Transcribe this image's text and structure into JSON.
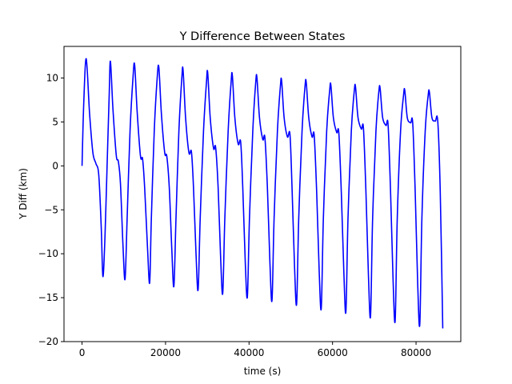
{
  "chart_data": {
    "type": "line",
    "title": "Y Difference Between States",
    "xlabel": "time (s)",
    "ylabel": "Y Diff (km)",
    "xlim": [
      -4320,
      90720
    ],
    "ylim": [
      -20,
      13.6
    ],
    "xticks": [
      0,
      20000,
      40000,
      60000,
      80000
    ],
    "xtick_labels": [
      "0",
      "20000",
      "40000",
      "60000",
      "80000"
    ],
    "yticks": [
      -20,
      -15,
      -10,
      -5,
      0,
      5,
      10
    ],
    "ytick_labels": [
      "−20",
      "−15",
      "−10",
      "−5",
      "0",
      "5",
      "10"
    ],
    "grid": false,
    "legend": "none",
    "series": [
      {
        "color": "#0000ff",
        "x": [
          0,
          400,
          1000,
          1800,
          2600,
          3300,
          4000,
          4600,
          5000,
          5500,
          6000,
          6500,
          6800,
          7400,
          8200,
          8700,
          9200,
          9800,
          10300,
          10800,
          11500,
          12200,
          12600,
          13200,
          14000,
          14500,
          15000,
          15700,
          16200,
          16600,
          17300,
          18000,
          18400,
          19000,
          19800,
          20300,
          20900,
          21500,
          22000,
          22500,
          23200,
          23900,
          24200,
          24800,
          25600,
          26200,
          26700,
          27300,
          27800,
          28300,
          29100,
          29800,
          30100,
          30700,
          31500,
          32000,
          32600,
          33200,
          33700,
          34200,
          35000,
          35700,
          36000,
          36600,
          37400,
          38000,
          38500,
          39100,
          39600,
          40100,
          40900,
          41600,
          41900,
          42500,
          43300,
          43800,
          44400,
          45000,
          45500,
          46000,
          46800,
          47500,
          47800,
          48400,
          49200,
          49800,
          50300,
          50900,
          51400,
          51900,
          52700,
          53400,
          53700,
          54300,
          55100,
          55600,
          56200,
          56800,
          57300,
          57800,
          58600,
          59300,
          59600,
          60200,
          61000,
          61500,
          62100,
          62700,
          63200,
          63700,
          64500,
          65200,
          65500,
          66100,
          66900,
          67400,
          68000,
          68600,
          69100,
          69600,
          70400,
          71100,
          71400,
          72000,
          72800,
          73300,
          73900,
          74500,
          75000,
          75500,
          76300,
          77000,
          77300,
          77900,
          78700,
          79200,
          79800,
          80400,
          80900,
          81400,
          82200,
          82900,
          83200,
          83800,
          84600,
          85200,
          85800,
          86400
        ],
        "y": [
          0,
          7,
          12.2,
          6,
          1.5,
          0.3,
          -1,
          -7,
          -12.6,
          -8,
          0,
          8,
          11.9,
          6.5,
          1.2,
          0.5,
          -2,
          -9,
          -12.9,
          -6,
          4,
          10,
          11.5,
          6.2,
          1.1,
          0.8,
          -2.5,
          -9.5,
          -13.3,
          -6,
          4,
          10,
          11.2,
          6,
          1.5,
          1.1,
          -2.5,
          -9.5,
          -13.7,
          -6,
          4,
          10,
          10.9,
          5.5,
          1.5,
          1.6,
          -2.5,
          -10,
          -14.1,
          -6,
          4,
          9.5,
          10.6,
          5.5,
          2,
          2.1,
          -2.5,
          -10.5,
          -14.5,
          -6,
          4,
          9.5,
          10.3,
          5.5,
          2.5,
          2.7,
          -2.5,
          -11,
          -14.9,
          -6,
          4,
          9.5,
          10,
          5.5,
          3,
          3.2,
          -2.5,
          -11,
          -15.3,
          -6,
          4,
          9,
          9.7,
          5.5,
          3.3,
          3.6,
          -2.5,
          -11.5,
          -15.7,
          -6,
          4,
          9,
          9.5,
          5.5,
          3.3,
          3.5,
          -3,
          -12,
          -16.2,
          -6,
          4,
          8.5,
          9.2,
          5.5,
          3.8,
          3.8,
          -3,
          -12,
          -16.6,
          -6,
          4,
          8.5,
          9,
          5.5,
          4.2,
          4.3,
          -3,
          -12.5,
          -17.1,
          -6,
          4,
          8.5,
          8.8,
          5.5,
          4.6,
          4.7,
          -3,
          -13,
          -17.6,
          -6,
          4,
          8,
          8.6,
          5.5,
          4.9,
          4.9,
          -3,
          -13.5,
          -18,
          -6,
          4,
          8,
          8.4,
          5.5,
          5.1,
          5.1,
          -3,
          -18.5
        ]
      }
    ]
  }
}
